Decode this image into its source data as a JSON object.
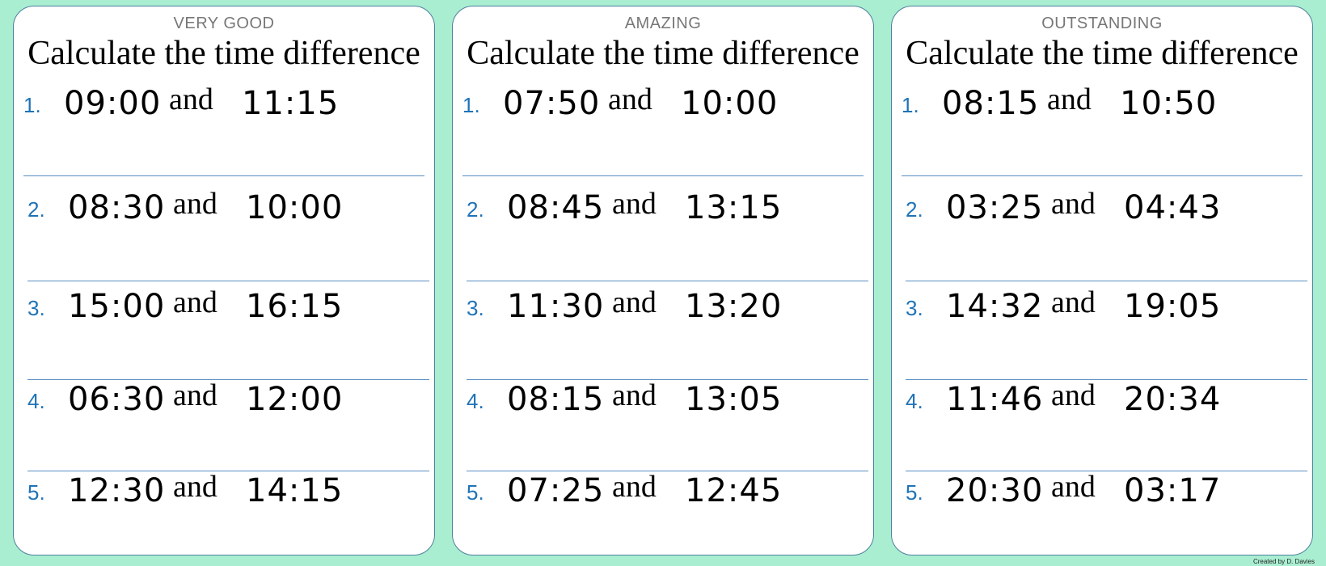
{
  "cards": [
    {
      "level": "VERY GOOD",
      "title": "Calculate the time difference",
      "questions": [
        {
          "number": "1.",
          "start": "09:00",
          "joiner": "and",
          "end": "11:15"
        },
        {
          "number": "2.",
          "start": "08:30",
          "joiner": "and",
          "end": "10:00"
        },
        {
          "number": "3.",
          "start": "15:00",
          "joiner": "and",
          "end": "16:15"
        },
        {
          "number": "4.",
          "start": "06:30",
          "joiner": "and",
          "end": "12:00"
        },
        {
          "number": "5.",
          "start": "12:30",
          "joiner": "and",
          "end": "14:15"
        }
      ]
    },
    {
      "level": "AMAZING",
      "title": "Calculate the time difference",
      "questions": [
        {
          "number": "1.",
          "start": "07:50",
          "joiner": "and",
          "end": "10:00"
        },
        {
          "number": "2.",
          "start": "08:45",
          "joiner": "and",
          "end": "13:15"
        },
        {
          "number": "3.",
          "start": "11:30",
          "joiner": "and",
          "end": "13:20"
        },
        {
          "number": "4.",
          "start": "08:15",
          "joiner": "and",
          "end": "13:05"
        },
        {
          "number": "5.",
          "start": "07:25",
          "joiner": "and",
          "end": "12:45"
        }
      ]
    },
    {
      "level": "OUTSTANDING",
      "title": "Calculate the time difference",
      "questions": [
        {
          "number": "1.",
          "start": "08:15",
          "joiner": "and",
          "end": "10:50"
        },
        {
          "number": "2.",
          "start": "03:25",
          "joiner": "and",
          "end": "04:43"
        },
        {
          "number": "3.",
          "start": "14:32",
          "joiner": "and",
          "end": "19:05"
        },
        {
          "number": "4.",
          "start": "11:46",
          "joiner": "and",
          "end": "20:34"
        },
        {
          "number": "5.",
          "start": "20:30",
          "joiner": "and",
          "end": "03:17"
        }
      ]
    }
  ],
  "footer": "Created by D. Davies"
}
